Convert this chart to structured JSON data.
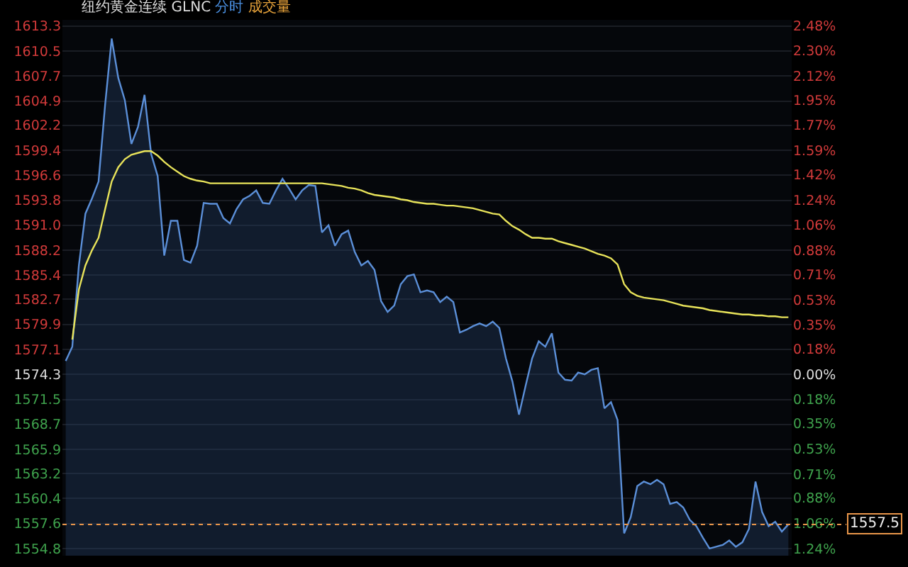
{
  "chart_data": {
    "type": "line",
    "title": "纽约黄金连续 GLNC",
    "annotations": [
      "分时",
      "成交量"
    ],
    "categories": [
      null,
      null,
      null,
      null,
      null,
      null,
      null,
      null,
      null,
      null,
      null,
      null,
      null,
      null,
      null,
      null,
      null,
      null,
      null,
      null,
      null,
      null,
      null,
      null,
      null,
      null,
      null,
      null,
      null,
      null,
      null,
      null,
      null,
      null,
      null,
      null,
      null,
      null,
      null,
      null,
      null,
      null,
      null,
      null,
      null,
      null,
      null,
      null,
      null,
      null,
      null,
      null,
      null,
      null,
      null,
      null,
      null,
      null,
      null,
      null,
      null,
      null,
      null,
      null,
      null,
      null,
      null,
      null,
      null,
      null,
      null,
      null,
      null,
      null,
      null,
      null,
      null,
      null,
      null,
      null,
      null,
      null,
      null,
      null,
      null,
      null,
      null,
      null,
      null,
      null,
      null,
      null,
      null,
      null,
      null,
      null,
      null,
      null,
      null,
      null,
      null,
      null,
      null,
      null,
      null,
      null,
      null,
      null,
      null,
      null,
      null
    ],
    "series": [
      {
        "type": "area",
        "color": "#5b8fd8",
        "values": [
          1575.8,
          1577.4,
          1586.5,
          1592.3,
          1594.0,
          1595.9,
          1604.5,
          1611.9,
          1607.5,
          1605.0,
          1600.1,
          1602.0,
          1605.6,
          1599.0,
          1596.5,
          1587.6,
          1591.5,
          1591.5,
          1587.1,
          1586.8,
          1588.7,
          1593.5,
          1593.4,
          1593.4,
          1591.8,
          1591.2,
          1592.8,
          1593.9,
          1594.3,
          1594.9,
          1593.5,
          1593.4,
          1594.9,
          1596.2,
          1595.1,
          1593.9,
          1594.9,
          1595.5,
          1595.4,
          1590.2,
          1591.0,
          1588.7,
          1590.0,
          1590.4,
          1588.0,
          1586.5,
          1587.0,
          1586.0,
          1582.5,
          1581.3,
          1582.0,
          1584.4,
          1585.3,
          1585.5,
          1583.5,
          1583.7,
          1583.5,
          1582.4,
          1583.0,
          1582.4,
          1579.0,
          1579.3,
          1579.7,
          1580.0,
          1579.7,
          1580.2,
          1579.5,
          1576.1,
          1573.5,
          1569.8,
          1573.0,
          1576.1,
          1578.0,
          1577.4,
          1578.9,
          1574.5,
          1573.7,
          1573.6,
          1574.5,
          1574.3,
          1574.8,
          1575.0,
          1570.5,
          1571.2,
          1569.2,
          1556.5,
          1558.3,
          1561.8,
          1562.3,
          1562.0,
          1562.5,
          1562.0,
          1559.8,
          1560.0,
          1559.4,
          1558.0,
          1557.3,
          1556.0,
          1554.8,
          1555.0,
          1555.2,
          1555.7,
          1555.0,
          1555.5,
          1557.0,
          1562.3,
          1558.9,
          1557.3,
          1557.8,
          1556.7,
          1557.5
        ]
      },
      {
        "color": "#e8e35a",
        "values": [
          null,
          1578.2,
          1583.8,
          1586.5,
          1588.2,
          1589.6,
          1592.8,
          1595.9,
          1597.5,
          1598.4,
          1598.9,
          1599.1,
          1599.3,
          1599.3,
          1598.8,
          1598.1,
          1597.5,
          1597.0,
          1596.5,
          1596.2,
          1596.0,
          1595.9,
          1595.7,
          1595.7,
          1595.7,
          1595.7,
          1595.7,
          1595.7,
          1595.7,
          1595.7,
          1595.7,
          1595.7,
          1595.7,
          1595.7,
          1595.7,
          1595.7,
          1595.7,
          1595.7,
          1595.7,
          1595.7,
          1595.6,
          1595.5,
          1595.4,
          1595.2,
          1595.1,
          1594.9,
          1594.6,
          1594.4,
          1594.3,
          1594.2,
          1594.1,
          1593.9,
          1593.8,
          1593.6,
          1593.5,
          1593.4,
          1593.4,
          1593.3,
          1593.2,
          1593.2,
          1593.1,
          1593.0,
          1592.9,
          1592.7,
          1592.5,
          1592.3,
          1592.2,
          1591.5,
          1590.9,
          1590.5,
          1590.0,
          1589.6,
          1589.6,
          1589.5,
          1589.5,
          1589.2,
          1589.0,
          1588.8,
          1588.6,
          1588.4,
          1588.1,
          1587.8,
          1587.6,
          1587.3,
          1586.6,
          1584.4,
          1583.5,
          1583.1,
          1582.9,
          1582.8,
          1582.7,
          1582.6,
          1582.4,
          1582.2,
          1582.0,
          1581.9,
          1581.8,
          1581.7,
          1581.5,
          1581.4,
          1581.3,
          1581.2,
          1581.1,
          1581.0,
          1581.0,
          1580.9,
          1580.9,
          1580.8,
          1580.8,
          1580.7,
          1580.7
        ]
      }
    ],
    "ylim": [
      1554.0,
      1614.0
    ],
    "yticks": [
      1554.8,
      1557.6,
      1560.4,
      1563.2,
      1565.9,
      1568.7,
      1571.5,
      1574.3,
      1577.1,
      1579.9,
      1582.7,
      1585.4,
      1588.2,
      {
        "value": 1591.0,
        "label": "1591.0"
      },
      1593.8,
      1596.6,
      1599.4,
      1602.2,
      1604.9,
      1607.7,
      1610.5,
      1613.3
    ],
    "y2lim": [
      -1.29,
      2.52
    ],
    "y2ticks": [
      {
        "value": -1.24,
        "label": "1.24%"
      },
      {
        "value": -1.06,
        "label": "1.06%"
      },
      {
        "value": -0.88,
        "label": "0.88%"
      },
      {
        "value": -0.71,
        "label": "0.71%"
      },
      {
        "value": -0.53,
        "label": "0.53%"
      },
      {
        "value": -0.35,
        "label": "0.35%"
      },
      {
        "value": -0.18,
        "label": "0.18%"
      },
      {
        "value": 0,
        "label": "0.00%"
      },
      {
        "value": 0.18,
        "label": "0.18%"
      },
      {
        "value": 0.35,
        "label": "0.35%"
      },
      {
        "value": 0.53,
        "label": "0.53%"
      },
      {
        "value": 0.71,
        "label": "0.71%"
      },
      {
        "value": 0.88,
        "label": "0.88%"
      },
      {
        "value": 1.06,
        "label": "1.06%"
      },
      {
        "value": 1.24,
        "label": "1.24%"
      },
      {
        "value": 1.42,
        "label": "1.42%"
      },
      {
        "value": 1.59,
        "label": "1.59%"
      },
      {
        "value": 1.77,
        "label": "1.77%"
      },
      {
        "value": 1.95,
        "label": "1.95%"
      },
      {
        "value": 2.12,
        "label": "2.12%"
      },
      {
        "value": 2.3,
        "label": "2.30%"
      },
      {
        "value": 2.48,
        "label": "2.48%"
      }
    ],
    "ref_lines": [
      {
        "axis": "y",
        "value": 1557.5,
        "label": "1557.5",
        "color": "#e8954a",
        "line_style": "dotted"
      }
    ],
    "grid": "y"
  }
}
